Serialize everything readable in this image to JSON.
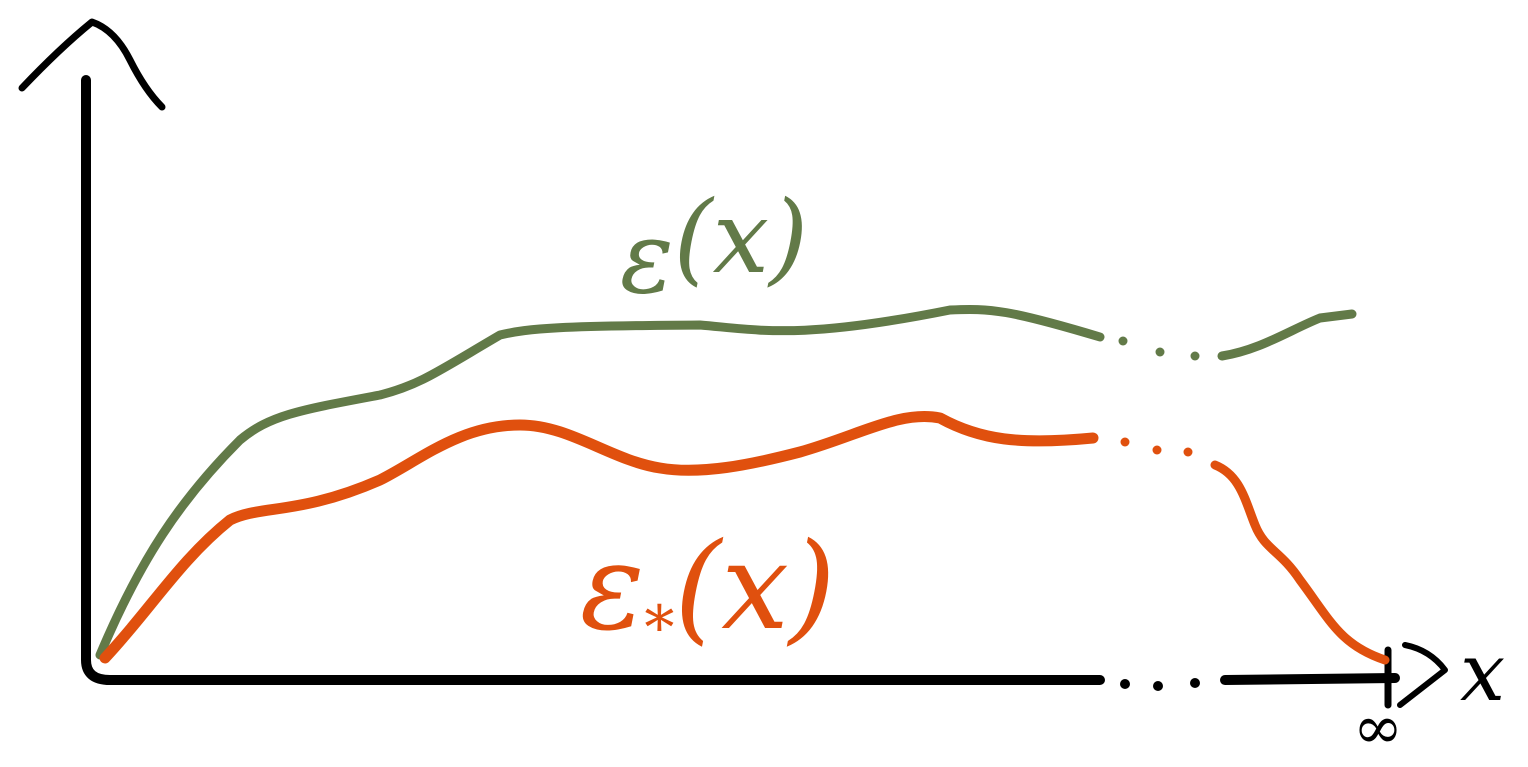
{
  "curves": [
    {
      "base": "ε",
      "sub": "",
      "arg": "(x)",
      "color": "#627a48"
    },
    {
      "base": "ε",
      "sub": "*",
      "arg": "(x)",
      "color": "#e0500e"
    }
  ],
  "axis": {
    "x_label": "x",
    "end_label": "∞"
  }
}
